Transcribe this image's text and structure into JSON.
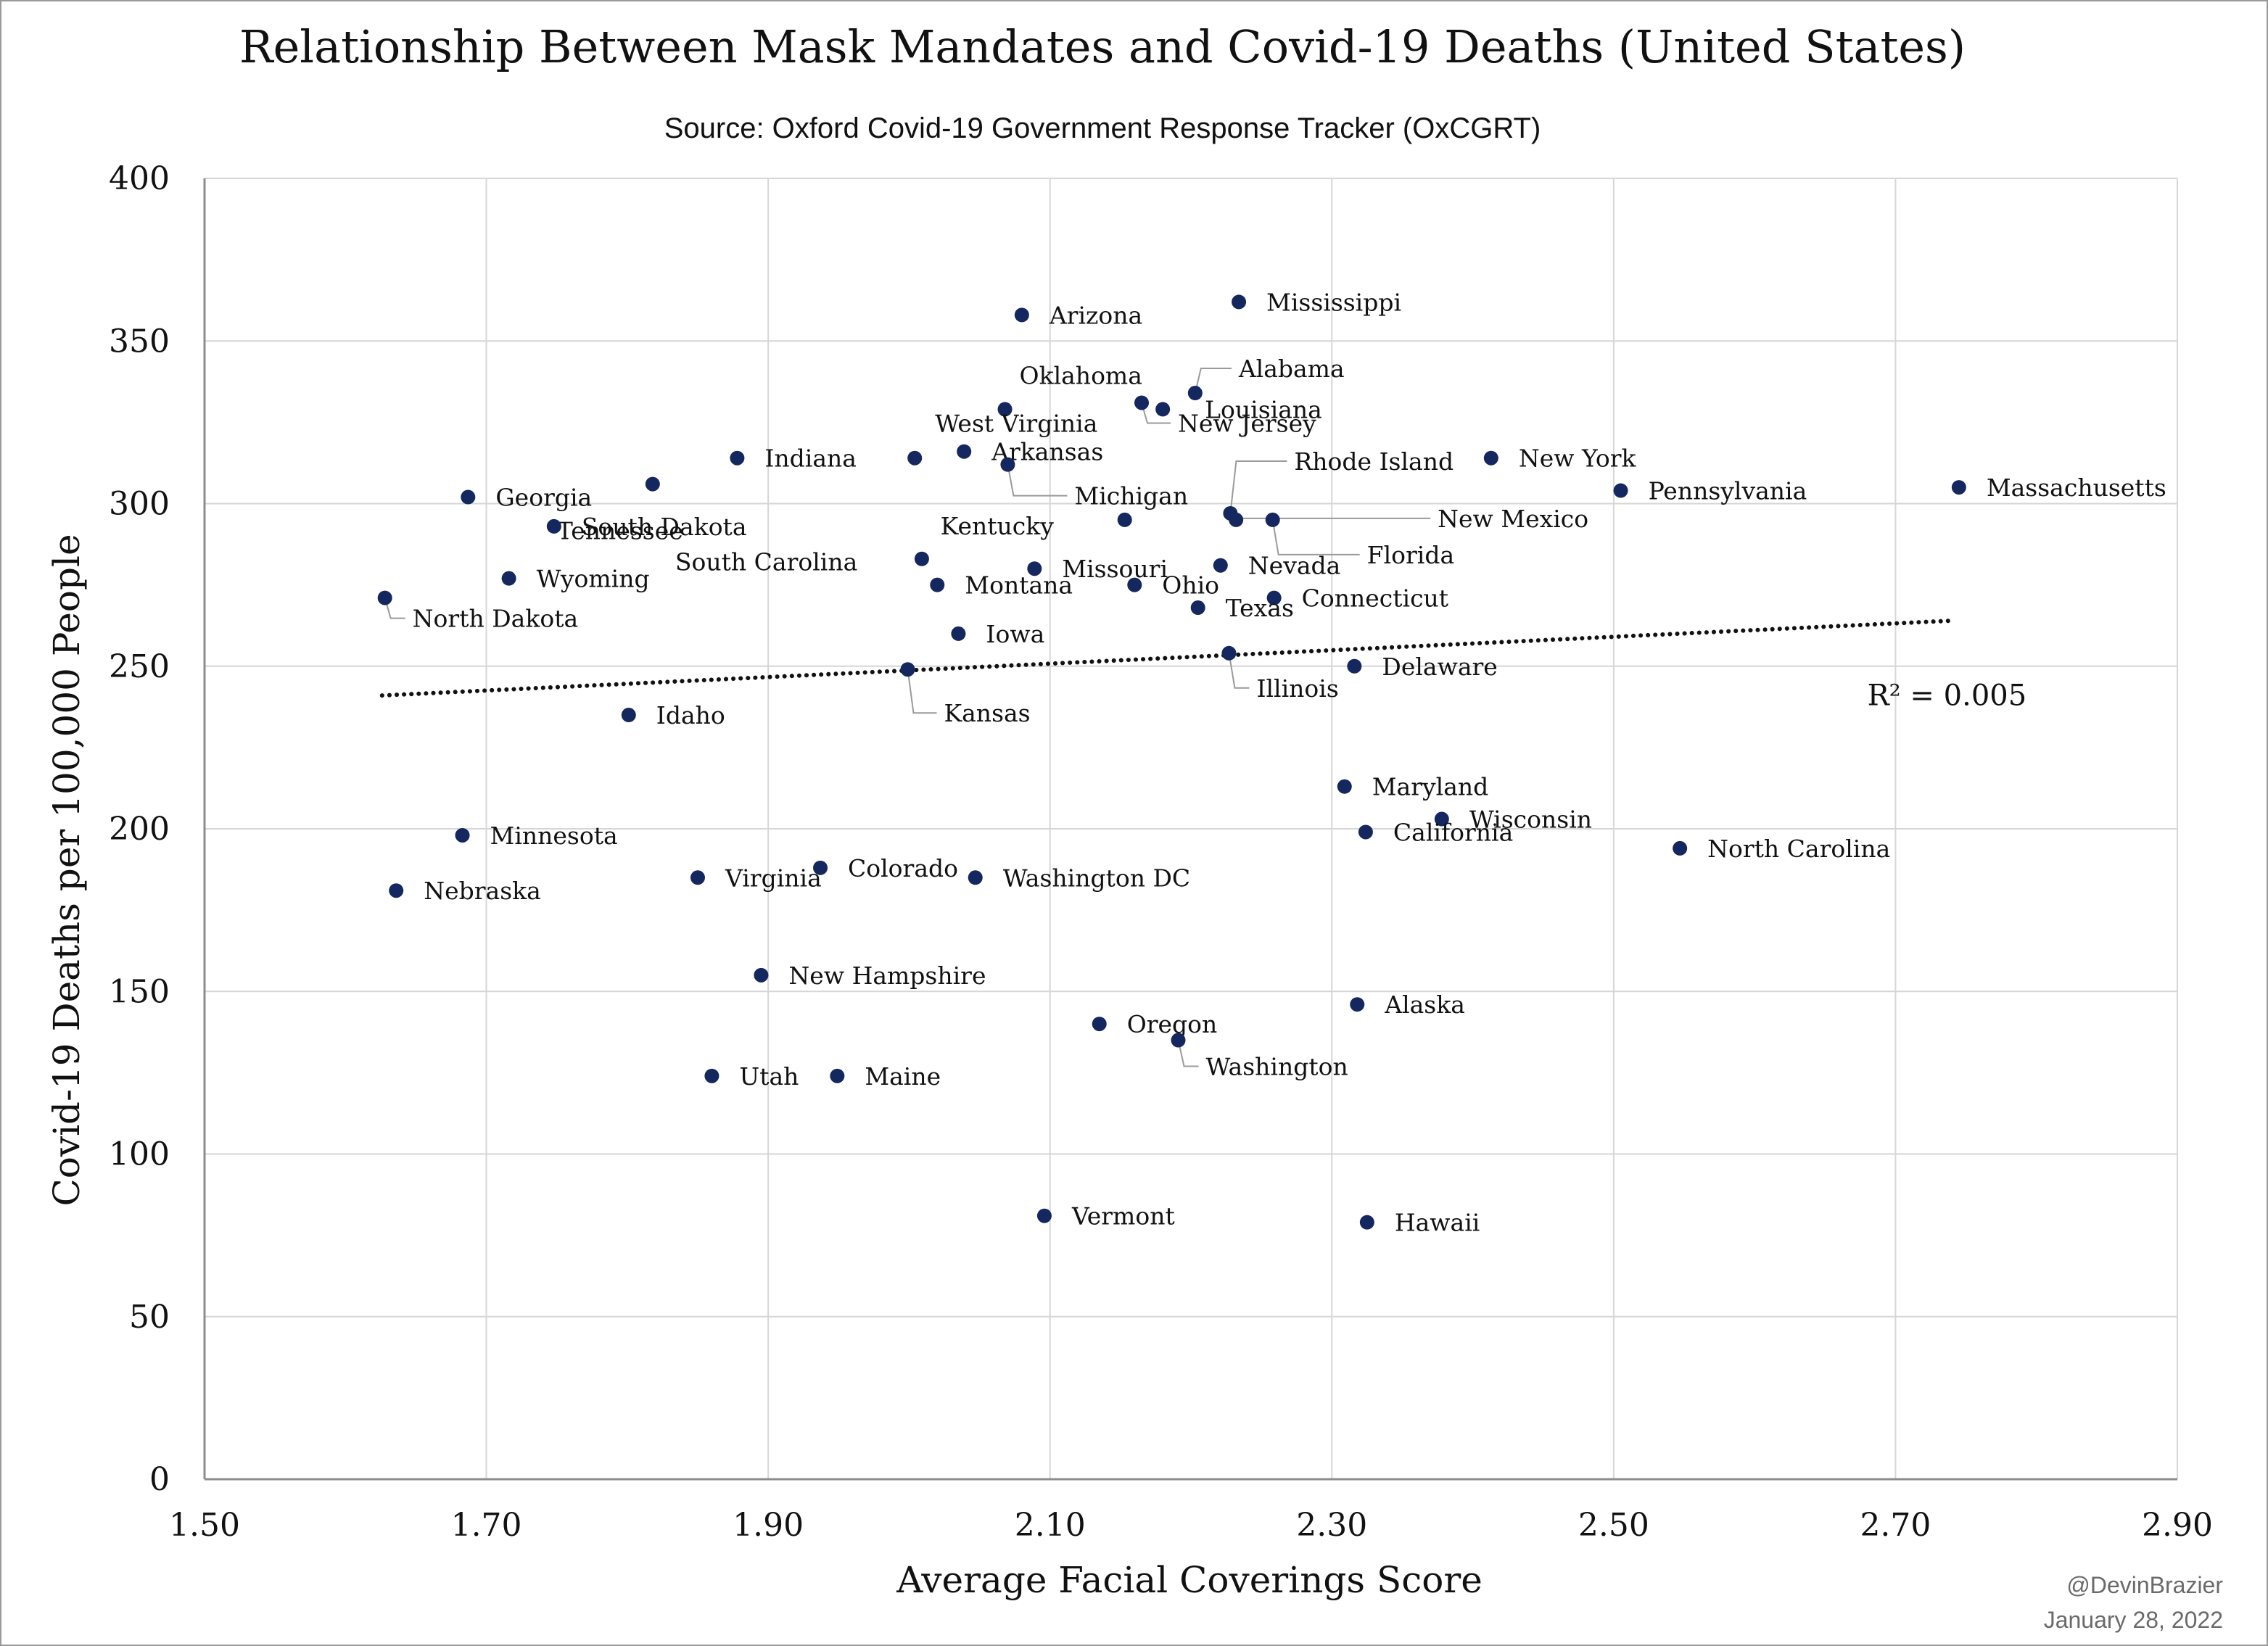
{
  "chart_data": {
    "type": "scatter",
    "title": "Relationship Between Mask Mandates and Covid-19 Deaths (United States)",
    "subtitle": "Source: Oxford Covid-19 Government Response Tracker (OxCGRT)",
    "xlabel": "Average Facial Coverings Score",
    "ylabel": "Covid-19 Deaths per 100,000 People",
    "xlim": [
      1.5,
      2.9
    ],
    "ylim": [
      0,
      400
    ],
    "x_ticks": [
      "1.50",
      "1.70",
      "1.90",
      "2.10",
      "2.30",
      "2.50",
      "2.70",
      "2.90"
    ],
    "y_ticks": [
      "0",
      "50",
      "100",
      "150",
      "200",
      "250",
      "300",
      "350",
      "400"
    ],
    "grid": true,
    "marker_color": "#14275e",
    "trendline": {
      "style": "dotted",
      "x": [
        1.626,
        2.74
      ],
      "y": [
        241,
        264
      ],
      "label": "R² = 0.005"
    },
    "points": [
      {
        "label": "Mississippi",
        "x": 2.234,
        "y": 362
      },
      {
        "label": "Arizona",
        "x": 2.08,
        "y": 358
      },
      {
        "label": "Alabama",
        "x": 2.203,
        "y": 334
      },
      {
        "label": "Oklahoma",
        "x": 2.068,
        "y": 329
      },
      {
        "label": "Louisiana",
        "x": 2.18,
        "y": 329
      },
      {
        "label": "New Jersey",
        "x": 2.165,
        "y": 331
      },
      {
        "label": "Arkansas",
        "x": 2.039,
        "y": 316
      },
      {
        "label": "West Virginia",
        "x": 2.004,
        "y": 314
      },
      {
        "label": "Indiana",
        "x": 1.878,
        "y": 314
      },
      {
        "label": "Michigan",
        "x": 2.07,
        "y": 312
      },
      {
        "label": "Tennessee",
        "x": 1.818,
        "y": 306
      },
      {
        "label": "New York",
        "x": 2.413,
        "y": 314
      },
      {
        "label": "Massachusetts",
        "x": 2.745,
        "y": 305
      },
      {
        "label": "Pennsylvania",
        "x": 2.505,
        "y": 304
      },
      {
        "label": "Georgia",
        "x": 1.687,
        "y": 302
      },
      {
        "label": "Rhode Island",
        "x": 2.228,
        "y": 297
      },
      {
        "label": "New Mexico",
        "x": 2.232,
        "y": 295
      },
      {
        "label": "Florida",
        "x": 2.258,
        "y": 295
      },
      {
        "label": "Kentucky",
        "x": 2.153,
        "y": 295
      },
      {
        "label": "South Dakota",
        "x": 1.748,
        "y": 293
      },
      {
        "label": "South Carolina",
        "x": 2.009,
        "y": 283
      },
      {
        "label": "Nevada",
        "x": 2.221,
        "y": 281
      },
      {
        "label": "Missouri",
        "x": 2.089,
        "y": 280
      },
      {
        "label": "Wyoming",
        "x": 1.716,
        "y": 277
      },
      {
        "label": "Montana",
        "x": 2.02,
        "y": 275
      },
      {
        "label": "Ohio",
        "x": 2.16,
        "y": 275
      },
      {
        "label": "North Dakota",
        "x": 1.628,
        "y": 271
      },
      {
        "label": "Connecticut",
        "x": 2.259,
        "y": 271
      },
      {
        "label": "Texas",
        "x": 2.205,
        "y": 268
      },
      {
        "label": "Iowa",
        "x": 2.035,
        "y": 260
      },
      {
        "label": "Illinois",
        "x": 2.227,
        "y": 254
      },
      {
        "label": "Delaware",
        "x": 2.316,
        "y": 250
      },
      {
        "label": "Kansas",
        "x": 1.999,
        "y": 249
      },
      {
        "label": "Idaho",
        "x": 1.801,
        "y": 235
      },
      {
        "label": "Maryland",
        "x": 2.309,
        "y": 213
      },
      {
        "label": "Wisconsin",
        "x": 2.378,
        "y": 203
      },
      {
        "label": "California",
        "x": 2.324,
        "y": 199
      },
      {
        "label": "Minnesota",
        "x": 1.683,
        "y": 198
      },
      {
        "label": "North Carolina",
        "x": 2.547,
        "y": 194
      },
      {
        "label": "Colorado",
        "x": 1.937,
        "y": 188
      },
      {
        "label": "Virginia",
        "x": 1.85,
        "y": 185
      },
      {
        "label": "Washington DC",
        "x": 2.047,
        "y": 185
      },
      {
        "label": "Nebraska",
        "x": 1.636,
        "y": 181
      },
      {
        "label": "New Hampshire",
        "x": 1.895,
        "y": 155
      },
      {
        "label": "Alaska",
        "x": 2.318,
        "y": 146
      },
      {
        "label": "Oregon",
        "x": 2.135,
        "y": 140
      },
      {
        "label": "Washington",
        "x": 2.191,
        "y": 135
      },
      {
        "label": "Utah",
        "x": 1.86,
        "y": 124
      },
      {
        "label": "Maine",
        "x": 1.949,
        "y": 124
      },
      {
        "label": "Vermont",
        "x": 2.096,
        "y": 81
      },
      {
        "label": "Hawaii",
        "x": 2.325,
        "y": 79
      }
    ]
  },
  "credit": {
    "handle": "@DevinBrazier",
    "date": "January 28, 2022"
  }
}
